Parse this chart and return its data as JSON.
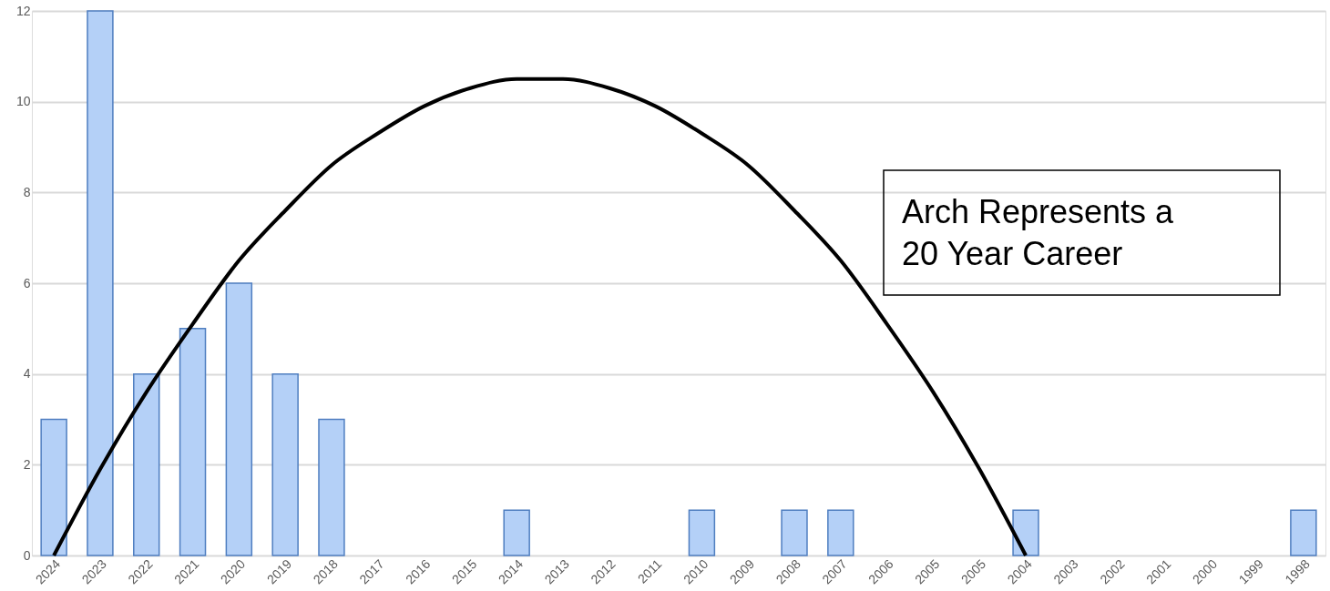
{
  "chart_data": {
    "type": "bar",
    "categories": [
      "2024",
      "2023",
      "2022",
      "2021",
      "2020",
      "2019",
      "2018",
      "2017",
      "2016",
      "2015",
      "2014",
      "2013",
      "2012",
      "2011",
      "2010",
      "2009",
      "2008",
      "2007",
      "2006",
      "2005",
      "2005",
      "2004",
      "2003",
      "2002",
      "2001",
      "2000",
      "1999",
      "1998"
    ],
    "series": [
      {
        "color": "#b4d0f7",
        "values": [
          3,
          12,
          4,
          5,
          6,
          4,
          3,
          0,
          0,
          0,
          1,
          0,
          0,
          0,
          1,
          0,
          1,
          1,
          0,
          0,
          0,
          1,
          0,
          0,
          0,
          0,
          0,
          1
        ]
      },
      {
        "type": "line",
        "color": "#000000",
        "values": [
          0,
          1.9,
          3.6,
          5.1,
          6.5,
          7.6,
          8.6,
          9.3,
          9.9,
          10.3,
          10.5,
          10.5,
          10.3,
          9.9,
          9.3,
          8.6,
          7.6,
          6.5,
          5.1,
          3.6,
          1.9,
          0,
          null,
          null,
          null,
          null,
          null,
          null
        ]
      }
    ],
    "ylim": [
      0,
      12
    ],
    "yticks": [
      0,
      2,
      4,
      6,
      8,
      10,
      12
    ],
    "grid": "y",
    "annotations": [
      "Arch Represents a 20 Year Career"
    ]
  }
}
